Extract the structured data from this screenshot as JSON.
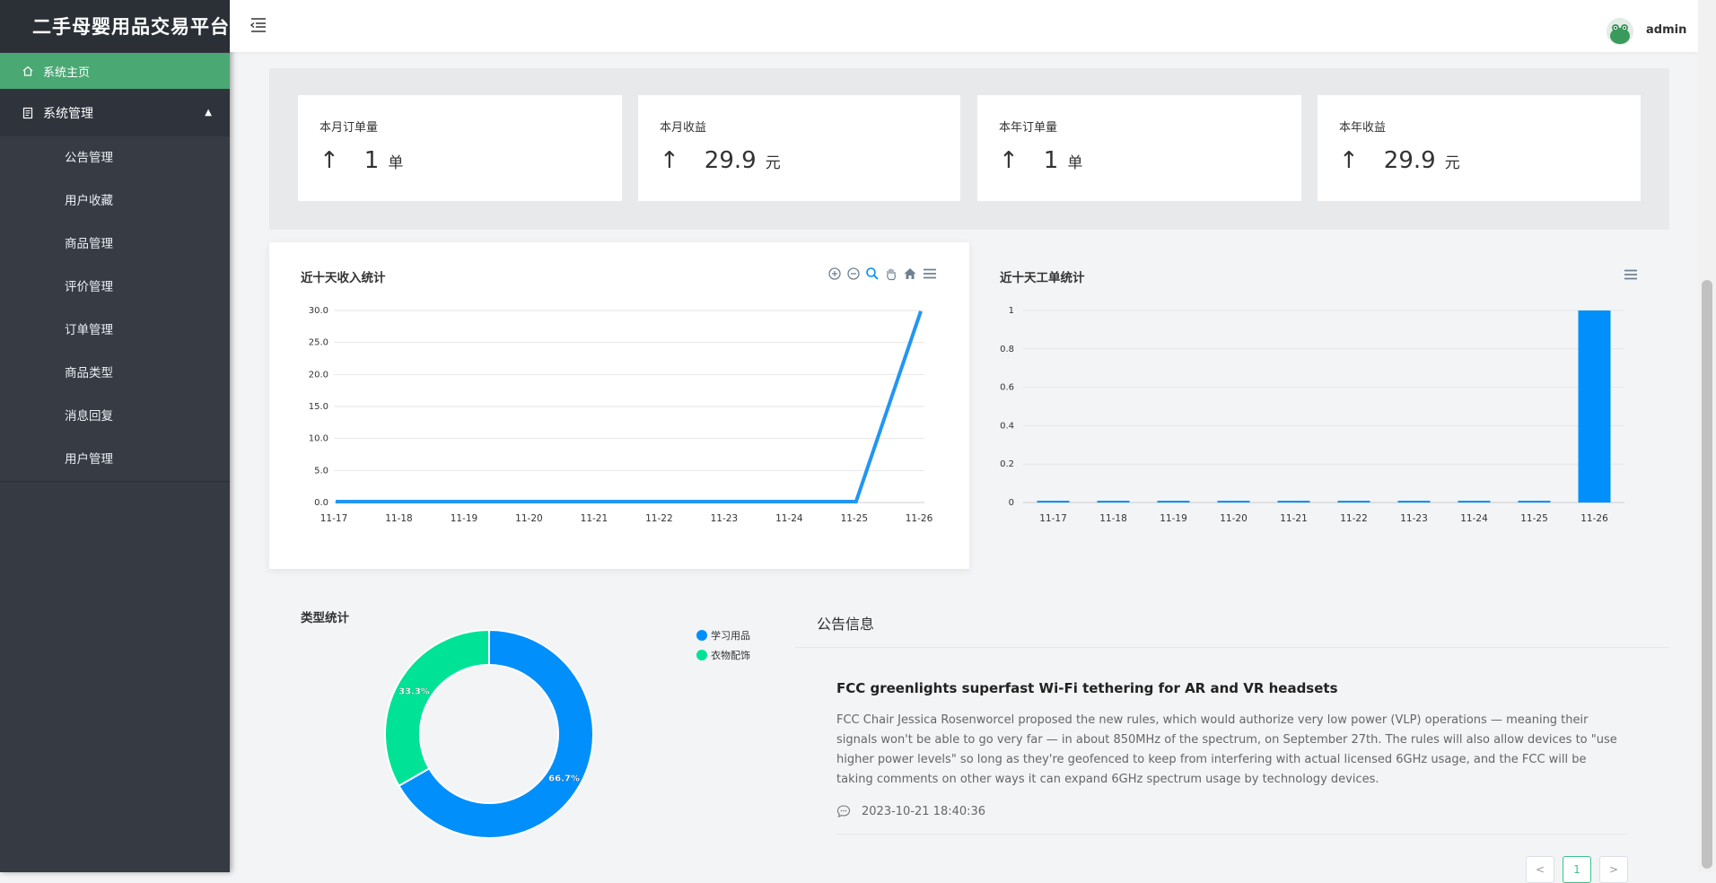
{
  "app": {
    "title": "二手母婴用品交易平台"
  },
  "sidebar": {
    "home_label": "系统主页",
    "group_label": "系统管理",
    "items": [
      {
        "label": "公告管理"
      },
      {
        "label": "用户收藏"
      },
      {
        "label": "商品管理"
      },
      {
        "label": "评价管理"
      },
      {
        "label": "订单管理"
      },
      {
        "label": "商品类型"
      },
      {
        "label": "消息回复"
      },
      {
        "label": "用户管理"
      }
    ]
  },
  "header": {
    "username": "admin"
  },
  "stats": [
    {
      "title": "本月订单量",
      "arrow": "↑",
      "value": "1",
      "unit": "单"
    },
    {
      "title": "本月收益",
      "arrow": "↑",
      "value": "29.9",
      "unit": "元"
    },
    {
      "title": "本年订单量",
      "arrow": "↑",
      "value": "1",
      "unit": "单"
    },
    {
      "title": "本年收益",
      "arrow": "↑",
      "value": "29.9",
      "unit": "元"
    }
  ],
  "chart_data": [
    {
      "type": "line",
      "title": "近十天收入统计",
      "x": [
        "11-17",
        "11-18",
        "11-19",
        "11-20",
        "11-21",
        "11-22",
        "11-23",
        "11-24",
        "11-25",
        "11-26"
      ],
      "series": [
        {
          "values": [
            0,
            0,
            0,
            0,
            0,
            0,
            0,
            0,
            0,
            29.9
          ]
        }
      ],
      "yticks": [
        "0.0",
        "5.0",
        "10.0",
        "15.0",
        "20.0",
        "25.0",
        "30.0"
      ],
      "ylim": [
        0,
        30
      ],
      "color": "#2196f3",
      "grid": true
    },
    {
      "type": "bar",
      "title": "近十天工单统计",
      "categories": [
        "11-17",
        "11-18",
        "11-19",
        "11-20",
        "11-21",
        "11-22",
        "11-23",
        "11-24",
        "11-25",
        "11-26"
      ],
      "series": [
        {
          "values": [
            0,
            0,
            0,
            0,
            0,
            0,
            0,
            0,
            0,
            1
          ]
        }
      ],
      "yticks": [
        "0",
        "0.2",
        "0.4",
        "0.6",
        "0.8",
        "1"
      ],
      "ylim": [
        0,
        1
      ],
      "color": "#008ffb",
      "grid": true
    },
    {
      "type": "pie",
      "title": "类型统计",
      "labels": [
        "学习用品",
        "衣物配饰"
      ],
      "values": [
        66.7,
        33.3
      ],
      "data_labels": [
        "66.7%",
        "33.3%"
      ],
      "colors": [
        "#008ffb",
        "#00e396"
      ],
      "legend": "top-right",
      "donut": true
    }
  ],
  "notice": {
    "heading": "公告信息",
    "title": "FCC greenlights superfast Wi-Fi tethering for AR and VR headsets",
    "body": "FCC Chair Jessica Rosenworcel proposed the new rules, which would authorize very low power (VLP) operations — meaning their signals won't be able to go very far — in about 850MHz of the spectrum, on September 27th. The rules will also allow devices to \"use higher power levels\" so long as they're geofenced to keep from interfering with actual licensed 6GHz usage, and the FCC will be taking comments on other ways it can expand 6GHz spectrum usage by technology devices.",
    "time": "2023-10-21 18:40:36"
  },
  "pagination": {
    "prev": "<",
    "current": "1",
    "next": ">"
  }
}
